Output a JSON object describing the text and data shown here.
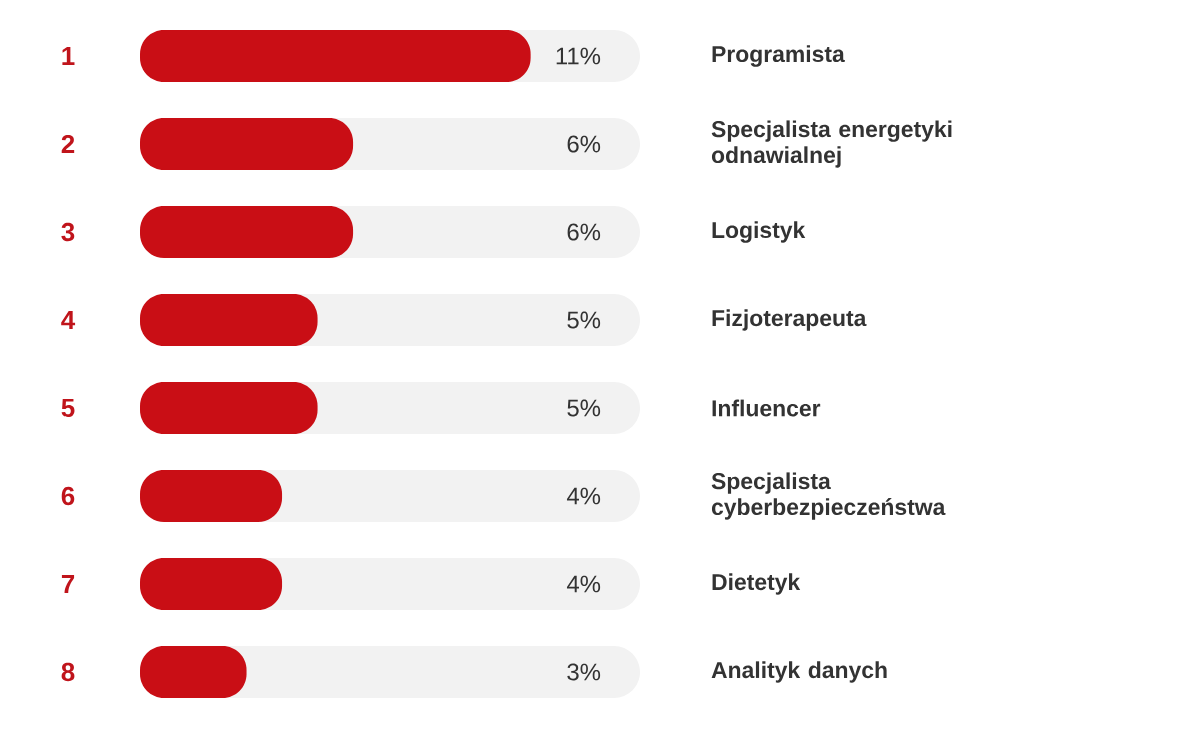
{
  "chart_data": {
    "type": "bar",
    "orientation": "horizontal",
    "categories": [
      "Programista",
      "Specjalista energetyki odnawialnej",
      "Logistyk",
      "Fizjoterapeuta",
      "Influencer",
      "Specjalista cyberbezpieczeństwa",
      "Dietetyk",
      "Analityk danych"
    ],
    "values": [
      11,
      6,
      6,
      5,
      5,
      4,
      4,
      3
    ],
    "value_labels": [
      "11%",
      "6%",
      "6%",
      "5%",
      "5%",
      "4%",
      "4%",
      "3%"
    ],
    "color": "#c90e15",
    "annotations": [
      "1",
      "2",
      "3",
      "4",
      "5",
      "6",
      "7",
      "8"
    ]
  }
}
